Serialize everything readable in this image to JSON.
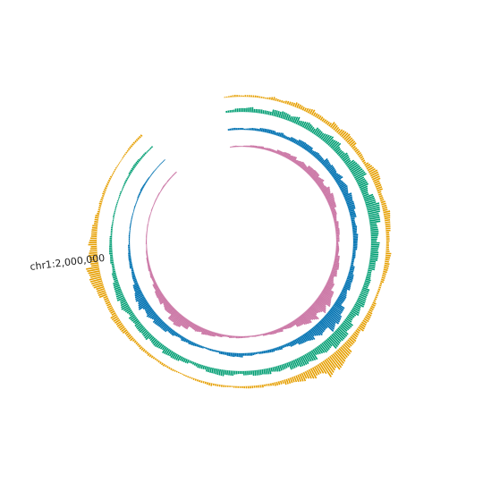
{
  "chart_data": {
    "type": "bar",
    "layout": "circular",
    "title": "",
    "tick_labels": [
      {
        "position": 2000000,
        "label": "chr1:2,000,000"
      }
    ],
    "genome_range": [
      0,
      2400000
    ],
    "gap_fraction": 0.1,
    "tracks": [
      {
        "color": "#E69F00",
        "ring": 1,
        "ylim": [
          0,
          1
        ],
        "values": [
          0.05,
          0.12,
          0.08,
          0.1,
          0.06,
          0.2,
          0.15,
          0.25,
          0.18,
          0.3,
          0.22,
          0.35,
          0.28,
          0.4,
          0.32,
          0.25,
          0.2,
          0.45,
          0.38,
          0.3,
          0.25,
          0.35,
          0.28,
          0.22,
          0.18,
          0.3,
          0.25,
          0.2,
          0.15,
          0.12,
          0.18,
          0.22,
          0.28,
          0.35,
          0.4,
          0.55,
          0.7,
          0.85,
          1.0,
          0.65,
          0.45,
          0.3,
          0.25,
          0.2,
          0.15,
          0.12,
          0.1,
          0.08,
          0.12,
          0.15,
          0.1,
          0.08,
          0.06,
          0.1,
          0.12,
          0.08,
          0.15,
          0.18,
          0.22,
          0.25,
          0.3,
          0.35,
          0.28,
          0.4,
          0.5,
          0.62,
          0.7,
          0.55,
          0.45,
          0.3,
          0.25,
          0.2,
          0.15,
          0.12,
          0.1,
          0.08,
          0.06,
          0.05,
          0.08,
          0.1
        ]
      },
      {
        "color": "#009E73",
        "ring": 2,
        "ylim": [
          0,
          1
        ],
        "values": [
          0.1,
          0.18,
          0.22,
          0.3,
          0.25,
          0.35,
          0.4,
          0.32,
          0.45,
          0.5,
          0.42,
          0.38,
          0.55,
          0.6,
          0.52,
          0.48,
          0.65,
          0.7,
          0.62,
          0.58,
          0.75,
          0.68,
          0.6,
          0.55,
          0.5,
          0.45,
          0.42,
          0.38,
          0.35,
          0.4,
          0.45,
          0.5,
          0.55,
          0.6,
          0.65,
          0.7,
          0.75,
          0.68,
          0.62,
          0.55,
          0.5,
          0.45,
          0.4,
          0.35,
          0.3,
          0.28,
          0.25,
          0.3,
          0.35,
          0.32,
          0.28,
          0.25,
          0.22,
          0.3,
          0.35,
          0.4,
          0.45,
          0.42,
          0.38,
          0.35,
          0.4,
          0.55,
          0.45,
          0.38,
          0.3,
          0.25,
          0.2,
          0.18,
          0.15,
          0.12,
          0.1,
          0.08,
          0.06,
          0.05,
          0.08,
          0.1,
          0.12,
          0.15,
          0.12,
          0.1
        ]
      },
      {
        "color": "#0072B2",
        "ring": 3,
        "ylim": [
          0,
          1
        ],
        "values": [
          0.08,
          0.12,
          0.1,
          0.15,
          0.18,
          0.22,
          0.2,
          0.28,
          0.25,
          0.3,
          0.35,
          0.32,
          0.38,
          0.45,
          0.4,
          0.35,
          0.5,
          0.55,
          0.48,
          0.42,
          0.38,
          0.35,
          0.3,
          0.28,
          0.25,
          0.22,
          0.2,
          0.25,
          0.3,
          0.35,
          0.4,
          0.5,
          0.62,
          0.75,
          0.88,
          1.0,
          0.8,
          0.6,
          0.45,
          0.35,
          0.28,
          0.22,
          0.18,
          0.15,
          0.12,
          0.2,
          0.25,
          0.22,
          0.18,
          0.15,
          0.12,
          0.1,
          0.15,
          0.2,
          0.25,
          0.3,
          0.35,
          0.4,
          0.45,
          0.6,
          0.7,
          0.55,
          0.4,
          0.3,
          0.22,
          0.18,
          0.15,
          0.12,
          0.1,
          0.08,
          0.06,
          0.05,
          0.04,
          0.06,
          0.08,
          0.1,
          0.08,
          0.06,
          0.05,
          0.04
        ]
      },
      {
        "color": "#CC79A7",
        "ring": 4,
        "ylim": [
          0,
          1
        ],
        "values": [
          0.05,
          0.08,
          0.06,
          0.1,
          0.12,
          0.15,
          0.18,
          0.22,
          0.25,
          0.3,
          0.35,
          0.4,
          0.38,
          0.45,
          0.42,
          0.5,
          0.55,
          0.48,
          0.42,
          0.35,
          0.3,
          0.25,
          0.22,
          0.2,
          0.18,
          0.22,
          0.25,
          0.3,
          0.35,
          0.4,
          0.48,
          0.58,
          0.7,
          0.85,
          1.0,
          0.9,
          0.7,
          0.55,
          0.4,
          0.3,
          0.25,
          0.2,
          0.15,
          0.12,
          0.1,
          0.08,
          0.1,
          0.12,
          0.15,
          0.18,
          0.22,
          0.28,
          0.35,
          0.42,
          0.5,
          0.6,
          0.72,
          0.65,
          0.55,
          0.45,
          0.38,
          0.3,
          0.25,
          0.2,
          0.15,
          0.12,
          0.1,
          0.08,
          0.06,
          0.05,
          0.04,
          0.05,
          0.06,
          0.05,
          0.04,
          0.05,
          0.06,
          0.08,
          0.06,
          0.05
        ]
      }
    ],
    "grid": false,
    "legend": "none"
  }
}
